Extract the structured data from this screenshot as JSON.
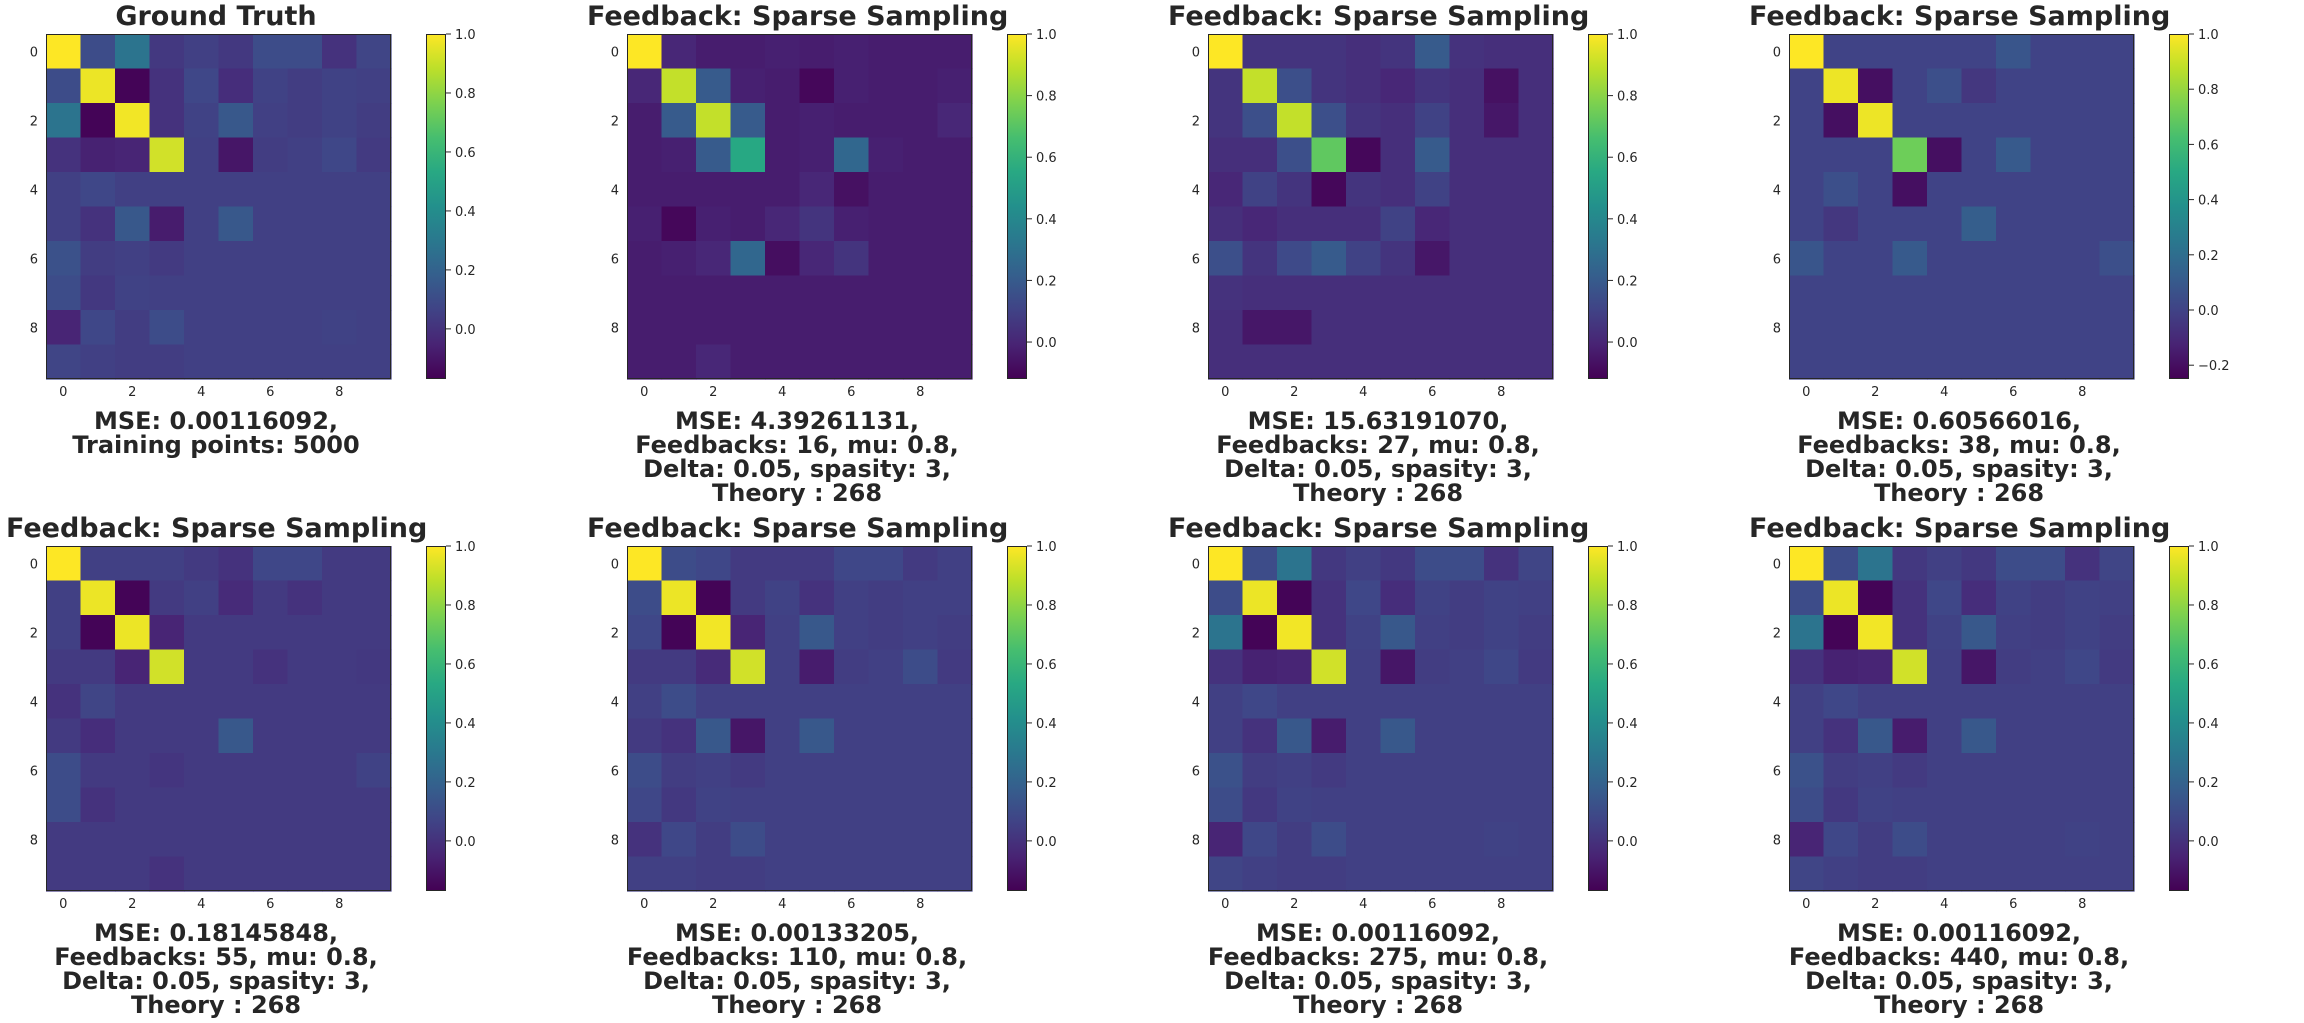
{
  "colors": {
    "text": "#262626",
    "colormap": "viridis"
  },
  "chart_data": [
    {
      "type": "heatmap",
      "title": "Ground Truth",
      "caption": [
        "MSE: 0.00116092,",
        "Training points: 5000"
      ],
      "vmin": -0.17,
      "vmax": 1.0,
      "colorbar_ticks": [
        "1.0",
        "0.8",
        "0.6",
        "0.4",
        "0.2",
        "0.0"
      ],
      "x_ticks": [
        "0",
        "2",
        "4",
        "6",
        "8"
      ],
      "y_ticks": [
        "0",
        "2",
        "4",
        "6",
        "8"
      ],
      "values": [
        [
          1.0,
          0.1,
          0.28,
          0.02,
          0.05,
          0.02,
          0.1,
          0.1,
          0.0,
          0.07
        ],
        [
          0.1,
          0.97,
          -0.16,
          0.0,
          0.08,
          -0.02,
          0.06,
          0.04,
          0.06,
          0.05
        ],
        [
          0.28,
          -0.16,
          0.98,
          0.0,
          0.06,
          0.15,
          0.05,
          0.04,
          0.06,
          0.04
        ],
        [
          0.0,
          -0.06,
          -0.05,
          0.92,
          0.05,
          -0.1,
          0.04,
          0.05,
          0.08,
          0.03
        ],
        [
          0.05,
          0.08,
          0.05,
          0.05,
          0.05,
          0.05,
          0.05,
          0.05,
          0.05,
          0.05
        ],
        [
          0.05,
          0.0,
          0.15,
          -0.08,
          0.05,
          0.15,
          0.05,
          0.05,
          0.05,
          0.05
        ],
        [
          0.12,
          0.04,
          0.05,
          0.03,
          0.05,
          0.05,
          0.05,
          0.05,
          0.05,
          0.05
        ],
        [
          0.1,
          0.02,
          0.06,
          0.05,
          0.05,
          0.05,
          0.05,
          0.05,
          0.05,
          0.05
        ],
        [
          -0.05,
          0.08,
          0.04,
          0.1,
          0.05,
          0.05,
          0.05,
          0.05,
          0.06,
          0.05
        ],
        [
          0.07,
          0.05,
          0.04,
          0.04,
          0.05,
          0.05,
          0.05,
          0.05,
          0.05,
          0.05
        ]
      ]
    },
    {
      "type": "heatmap",
      "title": "Feedback: Sparse Sampling",
      "caption": [
        "MSE: 4.39261131,",
        "Feedbacks: 16, mu: 0.8,",
        "Delta: 0.05, spasity: 3,",
        "Theory : 268"
      ],
      "vmin": -0.12,
      "vmax": 1.0,
      "colorbar_ticks": [
        "1.0",
        "0.8",
        "0.6",
        "0.4",
        "0.2",
        "0.0"
      ],
      "x_ticks": [
        "0",
        "2",
        "4",
        "6",
        "8"
      ],
      "y_ticks": [
        "0",
        "2",
        "4",
        "6",
        "8"
      ],
      "values": [
        [
          1.0,
          0.0,
          -0.03,
          -0.03,
          -0.02,
          -0.03,
          -0.02,
          -0.03,
          -0.03,
          -0.03
        ],
        [
          0.0,
          0.9,
          0.2,
          -0.02,
          -0.03,
          -0.1,
          -0.02,
          -0.03,
          -0.03,
          -0.02
        ],
        [
          -0.03,
          0.2,
          0.9,
          0.2,
          -0.03,
          -0.02,
          -0.03,
          -0.03,
          -0.03,
          0.0
        ],
        [
          -0.03,
          -0.02,
          0.2,
          0.55,
          -0.03,
          -0.02,
          0.25,
          -0.02,
          -0.03,
          -0.03
        ],
        [
          -0.03,
          -0.03,
          -0.03,
          -0.03,
          -0.03,
          0.0,
          -0.07,
          -0.03,
          -0.03,
          -0.03
        ],
        [
          -0.02,
          -0.1,
          -0.02,
          -0.03,
          0.0,
          0.05,
          -0.02,
          -0.03,
          -0.03,
          -0.03
        ],
        [
          -0.03,
          -0.02,
          0.0,
          0.25,
          -0.08,
          0.0,
          0.05,
          -0.03,
          -0.03,
          -0.03
        ],
        [
          -0.03,
          -0.03,
          -0.03,
          -0.03,
          -0.03,
          -0.03,
          -0.03,
          -0.03,
          -0.03,
          -0.03
        ],
        [
          -0.03,
          -0.03,
          -0.03,
          -0.03,
          -0.03,
          -0.03,
          -0.03,
          -0.03,
          -0.03,
          -0.03
        ],
        [
          -0.03,
          -0.03,
          0.0,
          -0.03,
          -0.03,
          -0.03,
          -0.03,
          -0.03,
          -0.03,
          -0.03
        ]
      ]
    },
    {
      "type": "heatmap",
      "title": "Feedback: Sparse Sampling",
      "caption": [
        "MSE: 15.63191070,",
        "Feedbacks: 27, mu: 0.8,",
        "Delta: 0.05, spasity: 3,",
        "Theory : 268"
      ],
      "vmin": -0.12,
      "vmax": 1.0,
      "colorbar_ticks": [
        "1.0",
        "0.8",
        "0.6",
        "0.4",
        "0.2",
        "0.0"
      ],
      "x_ticks": [
        "0",
        "2",
        "4",
        "6",
        "8"
      ],
      "y_ticks": [
        "0",
        "2",
        "4",
        "6",
        "8"
      ],
      "values": [
        [
          1.0,
          0.05,
          0.05,
          0.05,
          0.03,
          0.05,
          0.2,
          0.04,
          0.03,
          0.03
        ],
        [
          0.05,
          0.9,
          0.15,
          0.05,
          0.03,
          0.0,
          0.05,
          0.03,
          -0.07,
          0.03
        ],
        [
          0.05,
          0.15,
          0.9,
          0.15,
          0.05,
          0.03,
          0.1,
          0.03,
          -0.05,
          0.03
        ],
        [
          0.03,
          0.03,
          0.15,
          0.72,
          -0.1,
          0.03,
          0.2,
          0.03,
          0.03,
          0.03
        ],
        [
          0.0,
          0.1,
          0.05,
          -0.1,
          0.05,
          0.03,
          0.1,
          0.03,
          0.03,
          0.03
        ],
        [
          0.03,
          0.0,
          0.03,
          0.03,
          0.03,
          0.1,
          0.0,
          0.03,
          0.03,
          0.03
        ],
        [
          0.15,
          0.05,
          0.13,
          0.2,
          0.1,
          0.05,
          -0.05,
          0.03,
          0.03,
          0.03
        ],
        [
          0.04,
          0.03,
          0.03,
          0.03,
          0.03,
          0.03,
          0.03,
          0.03,
          0.03,
          0.03
        ],
        [
          0.03,
          -0.05,
          -0.05,
          0.03,
          0.03,
          0.03,
          0.03,
          0.03,
          0.03,
          0.03
        ],
        [
          0.03,
          0.03,
          0.03,
          0.03,
          0.03,
          0.03,
          0.03,
          0.03,
          0.03,
          0.03
        ]
      ]
    },
    {
      "type": "heatmap",
      "title": "Feedback: Sparse Sampling",
      "caption": [
        "MSE: 0.60566016,",
        "Feedbacks: 38, mu: 0.8,",
        "Delta: 0.05, spasity: 3,",
        "Theory : 268"
      ],
      "vmin": -0.25,
      "vmax": 1.0,
      "colorbar_ticks": [
        "1.0",
        "0.8",
        "0.6",
        "0.4",
        "0.2",
        "0.0",
        "−0.2"
      ],
      "x_ticks": [
        "0",
        "2",
        "4",
        "6",
        "8"
      ],
      "y_ticks": [
        "0",
        "2",
        "4",
        "6",
        "8"
      ],
      "values": [
        [
          1.0,
          0.0,
          0.0,
          0.0,
          0.0,
          0.0,
          0.08,
          0.0,
          0.0,
          0.0
        ],
        [
          0.0,
          0.97,
          -0.2,
          0.0,
          0.05,
          -0.05,
          0.0,
          0.0,
          0.0,
          0.0
        ],
        [
          0.0,
          -0.2,
          0.97,
          0.0,
          0.0,
          0.0,
          0.0,
          0.0,
          0.0,
          0.0
        ],
        [
          0.0,
          0.0,
          0.0,
          0.72,
          -0.2,
          0.0,
          0.1,
          0.0,
          0.0,
          0.0
        ],
        [
          0.0,
          0.05,
          0.0,
          -0.2,
          0.0,
          0.0,
          0.0,
          0.0,
          0.0,
          0.0
        ],
        [
          0.0,
          -0.05,
          0.0,
          0.0,
          0.0,
          0.12,
          0.0,
          0.0,
          0.0,
          0.0
        ],
        [
          0.08,
          0.0,
          0.0,
          0.1,
          0.0,
          0.0,
          0.0,
          0.0,
          0.0,
          0.05
        ],
        [
          0.0,
          0.0,
          0.0,
          0.0,
          0.0,
          0.0,
          0.0,
          0.0,
          0.0,
          0.0
        ],
        [
          0.0,
          0.0,
          0.0,
          0.0,
          0.0,
          0.0,
          0.0,
          0.0,
          0.0,
          0.0
        ],
        [
          0.0,
          0.0,
          0.0,
          0.0,
          0.0,
          0.0,
          0.0,
          0.0,
          0.0,
          0.0
        ]
      ]
    },
    {
      "type": "heatmap",
      "title": "Feedback: Sparse Sampling",
      "caption": [
        "MSE: 0.18145848,",
        "Feedbacks: 55, mu: 0.8,",
        "Delta: 0.05, spasity: 3,",
        "Theory : 268"
      ],
      "vmin": -0.17,
      "vmax": 1.0,
      "colorbar_ticks": [
        "1.0",
        "0.8",
        "0.6",
        "0.4",
        "0.2",
        "0.0"
      ],
      "x_ticks": [
        "0",
        "2",
        "4",
        "6",
        "8"
      ],
      "y_ticks": [
        "0",
        "2",
        "4",
        "6",
        "8"
      ],
      "values": [
        [
          1.0,
          0.05,
          0.05,
          0.05,
          0.03,
          0.0,
          0.08,
          0.08,
          0.03,
          0.03
        ],
        [
          0.05,
          0.97,
          -0.16,
          0.03,
          0.05,
          -0.03,
          0.03,
          0.0,
          0.03,
          0.03
        ],
        [
          0.05,
          -0.16,
          0.97,
          -0.05,
          0.03,
          0.03,
          0.03,
          0.03,
          0.03,
          0.03
        ],
        [
          0.03,
          0.03,
          -0.05,
          0.92,
          0.03,
          0.03,
          0.0,
          0.03,
          0.03,
          0.02
        ],
        [
          0.0,
          0.07,
          0.03,
          0.03,
          0.03,
          0.03,
          0.03,
          0.03,
          0.03,
          0.03
        ],
        [
          0.03,
          -0.02,
          0.03,
          0.03,
          0.03,
          0.15,
          0.03,
          0.03,
          0.03,
          0.03
        ],
        [
          0.1,
          0.03,
          0.03,
          0.01,
          0.03,
          0.03,
          0.03,
          0.03,
          0.03,
          0.06
        ],
        [
          0.1,
          0.0,
          0.03,
          0.03,
          0.03,
          0.03,
          0.03,
          0.03,
          0.03,
          0.03
        ],
        [
          0.03,
          0.03,
          0.03,
          0.03,
          0.03,
          0.03,
          0.03,
          0.03,
          0.03,
          0.03
        ],
        [
          0.03,
          0.03,
          0.03,
          0.0,
          0.03,
          0.03,
          0.03,
          0.03,
          0.03,
          0.03
        ]
      ]
    },
    {
      "type": "heatmap",
      "title": "Feedback: Sparse Sampling",
      "caption": [
        "MSE: 0.00133205,",
        "Feedbacks: 110, mu: 0.8,",
        "Delta: 0.05, spasity: 3,",
        "Theory : 268"
      ],
      "vmin": -0.17,
      "vmax": 1.0,
      "colorbar_ticks": [
        "1.0",
        "0.8",
        "0.6",
        "0.4",
        "0.2",
        "0.0"
      ],
      "x_ticks": [
        "0",
        "2",
        "4",
        "6",
        "8"
      ],
      "y_ticks": [
        "0",
        "2",
        "4",
        "6",
        "8"
      ],
      "values": [
        [
          1.0,
          0.1,
          0.08,
          0.03,
          0.03,
          0.03,
          0.08,
          0.08,
          0.03,
          0.05
        ],
        [
          0.1,
          0.97,
          -0.16,
          0.03,
          0.06,
          0.0,
          0.05,
          0.04,
          0.05,
          0.05
        ],
        [
          0.08,
          -0.16,
          0.98,
          -0.05,
          0.05,
          0.15,
          0.05,
          0.04,
          0.05,
          0.04
        ],
        [
          0.03,
          0.03,
          -0.03,
          0.92,
          0.05,
          -0.08,
          0.04,
          0.05,
          0.1,
          0.03
        ],
        [
          0.05,
          0.1,
          0.05,
          0.05,
          0.05,
          0.05,
          0.05,
          0.05,
          0.05,
          0.05
        ],
        [
          0.03,
          0.0,
          0.15,
          -0.1,
          0.05,
          0.15,
          0.05,
          0.05,
          0.05,
          0.05
        ],
        [
          0.1,
          0.04,
          0.05,
          0.03,
          0.05,
          0.05,
          0.05,
          0.05,
          0.05,
          0.05
        ],
        [
          0.08,
          0.02,
          0.06,
          0.05,
          0.05,
          0.05,
          0.05,
          0.05,
          0.05,
          0.05
        ],
        [
          0.0,
          0.08,
          0.04,
          0.1,
          0.05,
          0.05,
          0.05,
          0.05,
          0.05,
          0.05
        ],
        [
          0.05,
          0.05,
          0.04,
          0.04,
          0.05,
          0.05,
          0.05,
          0.05,
          0.05,
          0.05
        ]
      ]
    },
    {
      "type": "heatmap",
      "title": "Feedback: Sparse Sampling",
      "caption": [
        "MSE: 0.00116092,",
        "Feedbacks: 275, mu: 0.8,",
        "Delta: 0.05, spasity: 3,",
        "Theory : 268"
      ],
      "vmin": -0.17,
      "vmax": 1.0,
      "colorbar_ticks": [
        "1.0",
        "0.8",
        "0.6",
        "0.4",
        "0.2",
        "0.0"
      ],
      "x_ticks": [
        "0",
        "2",
        "4",
        "6",
        "8"
      ],
      "y_ticks": [
        "0",
        "2",
        "4",
        "6",
        "8"
      ],
      "values": [
        [
          1.0,
          0.1,
          0.28,
          0.02,
          0.05,
          0.02,
          0.1,
          0.1,
          0.0,
          0.07
        ],
        [
          0.1,
          0.97,
          -0.16,
          0.0,
          0.08,
          -0.02,
          0.06,
          0.04,
          0.06,
          0.05
        ],
        [
          0.28,
          -0.16,
          0.98,
          0.0,
          0.06,
          0.15,
          0.05,
          0.04,
          0.06,
          0.04
        ],
        [
          0.0,
          -0.06,
          -0.05,
          0.92,
          0.05,
          -0.1,
          0.04,
          0.05,
          0.08,
          0.03
        ],
        [
          0.05,
          0.08,
          0.05,
          0.05,
          0.05,
          0.05,
          0.05,
          0.05,
          0.05,
          0.05
        ],
        [
          0.05,
          0.0,
          0.15,
          -0.08,
          0.05,
          0.15,
          0.05,
          0.05,
          0.05,
          0.05
        ],
        [
          0.12,
          0.04,
          0.05,
          0.03,
          0.05,
          0.05,
          0.05,
          0.05,
          0.05,
          0.05
        ],
        [
          0.1,
          0.02,
          0.06,
          0.05,
          0.05,
          0.05,
          0.05,
          0.05,
          0.05,
          0.05
        ],
        [
          -0.05,
          0.08,
          0.04,
          0.1,
          0.05,
          0.05,
          0.05,
          0.05,
          0.06,
          0.05
        ],
        [
          0.07,
          0.05,
          0.04,
          0.04,
          0.05,
          0.05,
          0.05,
          0.05,
          0.05,
          0.05
        ]
      ]
    },
    {
      "type": "heatmap",
      "title": "Feedback: Sparse Sampling",
      "caption": [
        "MSE: 0.00116092,",
        "Feedbacks: 440, mu: 0.8,",
        "Delta: 0.05, spasity: 3,",
        "Theory : 268"
      ],
      "vmin": -0.17,
      "vmax": 1.0,
      "colorbar_ticks": [
        "1.0",
        "0.8",
        "0.6",
        "0.4",
        "0.2",
        "0.0"
      ],
      "x_ticks": [
        "0",
        "2",
        "4",
        "6",
        "8"
      ],
      "y_ticks": [
        "0",
        "2",
        "4",
        "6",
        "8"
      ],
      "values": [
        [
          1.0,
          0.1,
          0.28,
          0.02,
          0.05,
          0.02,
          0.1,
          0.1,
          0.0,
          0.07
        ],
        [
          0.1,
          0.97,
          -0.16,
          0.0,
          0.08,
          -0.02,
          0.06,
          0.04,
          0.06,
          0.05
        ],
        [
          0.28,
          -0.16,
          0.98,
          0.0,
          0.06,
          0.15,
          0.05,
          0.04,
          0.06,
          0.04
        ],
        [
          0.0,
          -0.06,
          -0.05,
          0.92,
          0.05,
          -0.1,
          0.04,
          0.05,
          0.08,
          0.03
        ],
        [
          0.05,
          0.08,
          0.05,
          0.05,
          0.05,
          0.05,
          0.05,
          0.05,
          0.05,
          0.05
        ],
        [
          0.05,
          0.0,
          0.15,
          -0.08,
          0.05,
          0.15,
          0.05,
          0.05,
          0.05,
          0.05
        ],
        [
          0.12,
          0.04,
          0.05,
          0.03,
          0.05,
          0.05,
          0.05,
          0.05,
          0.05,
          0.05
        ],
        [
          0.1,
          0.02,
          0.06,
          0.05,
          0.05,
          0.05,
          0.05,
          0.05,
          0.05,
          0.05
        ],
        [
          -0.05,
          0.08,
          0.04,
          0.1,
          0.05,
          0.05,
          0.05,
          0.05,
          0.06,
          0.05
        ],
        [
          0.07,
          0.05,
          0.04,
          0.04,
          0.05,
          0.05,
          0.05,
          0.05,
          0.05,
          0.05
        ]
      ]
    }
  ]
}
